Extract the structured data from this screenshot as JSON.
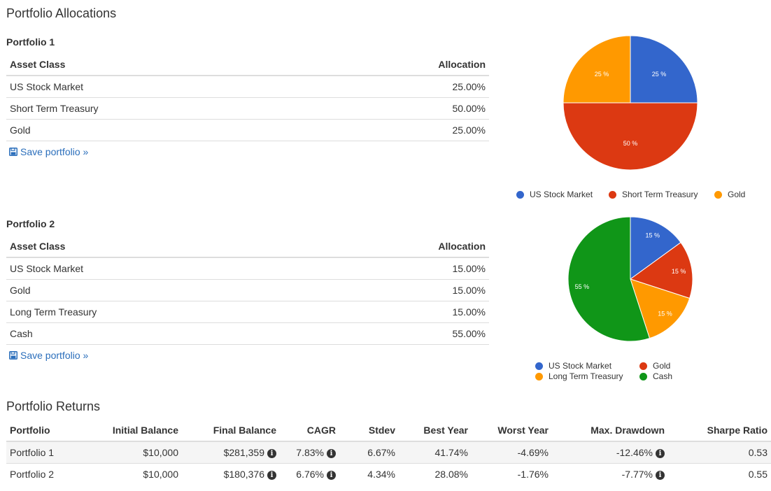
{
  "page": {
    "title": "Portfolio Allocations"
  },
  "portfolio1": {
    "title": "Portfolio 1",
    "col_asset": "Asset Class",
    "col_alloc": "Allocation",
    "rows": [
      {
        "asset": "US Stock Market",
        "alloc": "25.00%"
      },
      {
        "asset": "Short Term Treasury",
        "alloc": "50.00%"
      },
      {
        "asset": "Gold",
        "alloc": "25.00%"
      }
    ],
    "save_label": "Save portfolio »"
  },
  "portfolio2": {
    "title": "Portfolio 2",
    "col_asset": "Asset Class",
    "col_alloc": "Allocation",
    "rows": [
      {
        "asset": "US Stock Market",
        "alloc": "15.00%"
      },
      {
        "asset": "Gold",
        "alloc": "15.00%"
      },
      {
        "asset": "Long Term Treasury",
        "alloc": "15.00%"
      },
      {
        "asset": "Cash",
        "alloc": "55.00%"
      }
    ],
    "save_label": "Save portfolio »"
  },
  "chart_data": [
    {
      "type": "pie",
      "slices": [
        {
          "label": "US Stock Market",
          "value": 25,
          "text": "25 %",
          "color": "#3366cc"
        },
        {
          "label": "Short Term Treasury",
          "value": 50,
          "text": "50 %",
          "color": "#dc3912"
        },
        {
          "label": "Gold",
          "value": 25,
          "text": "25 %",
          "color": "#ff9900"
        }
      ],
      "legend": "bottom"
    },
    {
      "type": "pie",
      "slices": [
        {
          "label": "US Stock Market",
          "value": 15,
          "text": "15 %",
          "color": "#3366cc"
        },
        {
          "label": "Gold",
          "value": 15,
          "text": "15 %",
          "color": "#dc3912"
        },
        {
          "label": "Long Term Treasury",
          "value": 15,
          "text": "15 %",
          "color": "#ff9900"
        },
        {
          "label": "Cash",
          "value": 55,
          "text": "55 %",
          "color": "#109618"
        }
      ],
      "legend": "bottom"
    }
  ],
  "returns": {
    "title": "Portfolio Returns",
    "headers": [
      "Portfolio",
      "Initial Balance",
      "Final Balance",
      "CAGR",
      "Stdev",
      "Best Year",
      "Worst Year",
      "Max. Drawdown",
      "Sharpe Ratio"
    ],
    "rows": [
      {
        "portfolio": "Portfolio 1",
        "initial": "$10,000",
        "final": "$281,359",
        "cagr": "7.83%",
        "stdev": "6.67%",
        "best": "41.74%",
        "worst": "-4.69%",
        "drawdown": "-12.46%",
        "sharpe": "0.53"
      },
      {
        "portfolio": "Portfolio 2",
        "initial": "$10,000",
        "final": "$180,376",
        "cagr": "6.76%",
        "stdev": "4.34%",
        "best": "28.08%",
        "worst": "-1.76%",
        "drawdown": "-7.77%",
        "sharpe": "0.55"
      }
    ],
    "info_glyph": "i"
  }
}
